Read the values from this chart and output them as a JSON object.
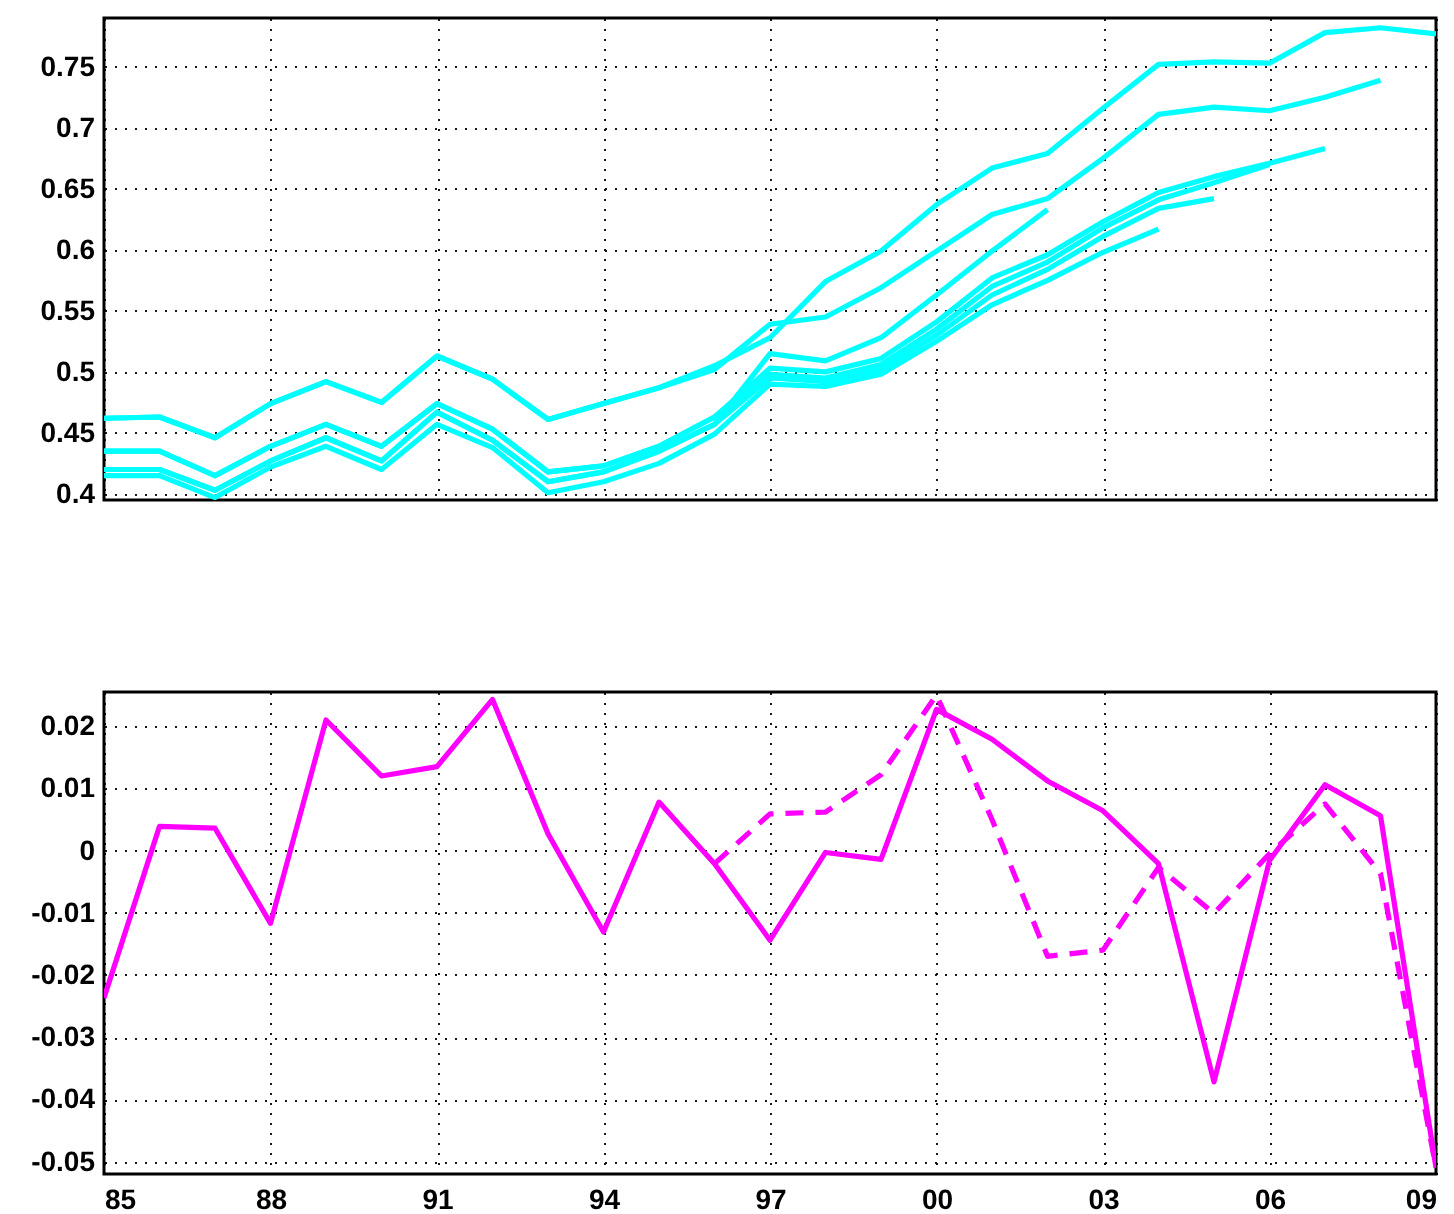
{
  "chart_data": [
    {
      "type": "line",
      "x": [
        1985,
        1986,
        1987,
        1988,
        1989,
        1990,
        1991,
        1992,
        1993,
        1994,
        1995,
        1996,
        1997,
        1998,
        1999,
        2000,
        2001,
        2002,
        2003,
        2004,
        2005,
        2006,
        2007,
        2008,
        2009
      ],
      "series": [
        {
          "color": "#00ffff",
          "values": [
            0.462,
            0.463,
            0.446,
            0.474,
            0.492,
            0.475,
            0.513,
            0.494,
            0.461,
            0.474,
            0.487,
            0.505,
            0.528,
            0.574,
            0.599,
            0.637,
            0.667,
            0.679,
            0.716,
            0.752,
            0.754,
            0.753,
            0.778,
            0.782,
            0.777
          ]
        },
        {
          "color": "#00ffff",
          "values": [
            0.462,
            0.463,
            0.446,
            0.474,
            0.492,
            0.475,
            0.513,
            0.494,
            0.461,
            0.474,
            0.487,
            0.502,
            0.539,
            0.545,
            0.569,
            0.599,
            0.629,
            0.642,
            0.675,
            0.711,
            0.717,
            0.714,
            0.725,
            0.739,
            null
          ]
        },
        {
          "color": "#00ffff",
          "values": [
            0.435,
            0.435,
            0.415,
            0.439,
            0.457,
            0.439,
            0.474,
            0.453,
            0.418,
            0.423,
            0.439,
            0.463,
            0.503,
            0.5,
            0.511,
            0.541,
            0.577,
            0.596,
            0.623,
            0.647,
            0.66,
            0.671,
            0.683,
            null,
            null
          ]
        },
        {
          "color": "#00ffff",
          "values": [
            0.435,
            0.435,
            0.415,
            0.439,
            0.457,
            0.439,
            0.474,
            0.453,
            0.418,
            0.423,
            0.439,
            0.463,
            0.498,
            0.495,
            0.506,
            0.535,
            0.57,
            0.59,
            0.618,
            0.641,
            0.655,
            0.67,
            null,
            null,
            null
          ]
        },
        {
          "color": "#00ffff",
          "values": [
            0.42,
            0.42,
            0.403,
            0.427,
            0.446,
            0.427,
            0.467,
            0.444,
            0.41,
            0.418,
            0.435,
            0.457,
            0.495,
            0.492,
            0.502,
            0.53,
            0.563,
            0.584,
            0.611,
            0.634,
            0.642,
            null,
            null,
            null,
            null
          ]
        },
        {
          "color": "#00ffff",
          "values": [
            0.415,
            0.415,
            0.397,
            0.422,
            0.439,
            0.42,
            0.457,
            0.438,
            0.401,
            0.41,
            0.425,
            0.449,
            0.49,
            0.488,
            0.498,
            0.525,
            0.555,
            0.575,
            0.598,
            0.617,
            null,
            null,
            null,
            null,
            null
          ]
        },
        {
          "color": "#00ffff",
          "values": [
            0.42,
            0.42,
            0.403,
            0.427,
            0.446,
            0.427,
            0.467,
            0.444,
            0.41,
            0.418,
            0.435,
            0.457,
            0.515,
            0.509,
            0.528,
            0.563,
            0.599,
            0.633,
            null,
            null,
            null,
            null,
            null,
            null,
            null
          ]
        }
      ],
      "xlim": [
        1985,
        2009
      ],
      "xticks": [
        {
          "value": 1985,
          "label": null
        },
        {
          "value": 1988,
          "label": null
        },
        {
          "value": 1991,
          "label": null
        },
        {
          "value": 1994,
          "label": null
        },
        {
          "value": 1997,
          "label": null
        },
        {
          "value": 2000,
          "label": null
        },
        {
          "value": 2003,
          "label": null
        },
        {
          "value": 2006,
          "label": null
        },
        {
          "value": 2009,
          "label": null
        }
      ],
      "ylim": [
        0.395,
        0.79
      ],
      "yticks": [
        0.4,
        0.45,
        0.5,
        0.55,
        0.6,
        0.65,
        0.7,
        0.75
      ],
      "grid": true,
      "tick_labels": "y",
      "line_style": "solid"
    },
    {
      "type": "line",
      "x": [
        1985,
        1986,
        1987,
        1988,
        1989,
        1990,
        1991,
        1992,
        1993,
        1994,
        1995,
        1996,
        1997,
        1998,
        1999,
        2000,
        2001,
        2002,
        2003,
        2004,
        2005,
        2006,
        2007,
        2008,
        2009
      ],
      "series": [
        {
          "color": "#ff00ff",
          "line_style": "solid",
          "values": [
            -0.0237,
            0.0039,
            0.0036,
            -0.0117,
            0.021,
            0.012,
            0.0135,
            0.0243,
            0.0027,
            -0.0131,
            0.0078,
            -0.0021,
            -0.0144,
            -0.0003,
            -0.0014,
            0.0227,
            0.0179,
            0.0112,
            0.0064,
            -0.0021,
            -0.0372,
            -0.0016,
            0.0106,
            0.0056,
            -0.051
          ]
        },
        {
          "color": "#ff00ff",
          "line_style": "dashed",
          "values": [
            null,
            null,
            null,
            null,
            null,
            null,
            null,
            null,
            null,
            null,
            null,
            -0.0021,
            0.0059,
            0.0062,
            0.0122,
            0.025,
            0.005,
            -0.017,
            -0.016,
            -0.0027,
            -0.0101,
            -0.0005,
            0.0075,
            -0.0037,
            -0.051
          ]
        }
      ],
      "xlim": [
        1985,
        2009
      ],
      "xticks": [
        {
          "value": 1985,
          "label": "85"
        },
        {
          "value": 1988,
          "label": "88"
        },
        {
          "value": 1991,
          "label": "91"
        },
        {
          "value": 1994,
          "label": "94"
        },
        {
          "value": 1997,
          "label": "97"
        },
        {
          "value": 2000,
          "label": "00"
        },
        {
          "value": 2003,
          "label": "03"
        },
        {
          "value": 2006,
          "label": "06"
        },
        {
          "value": 2009,
          "label": "09"
        }
      ],
      "ylim": [
        -0.052,
        0.0255
      ],
      "yticks": [
        -0.05,
        -0.04,
        -0.03,
        -0.02,
        -0.01,
        0,
        0.01,
        0.02
      ],
      "grid": true
    }
  ]
}
